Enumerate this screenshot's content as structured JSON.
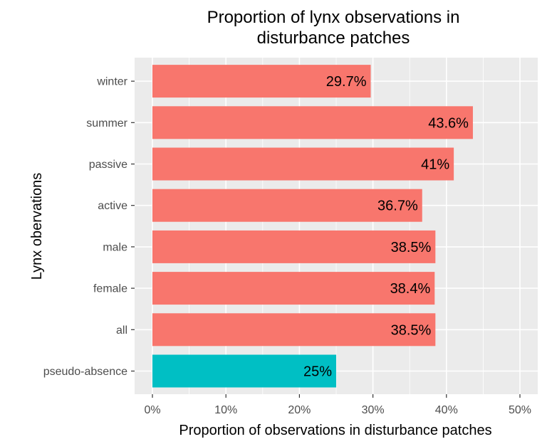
{
  "chart_data": {
    "type": "bar",
    "orientation": "horizontal",
    "title_lines": [
      "Proportion of lynx observations in",
      "disturbance patches"
    ],
    "xlabel": "Proportion of observations in disturbance patches",
    "ylabel": "Lynx obervations",
    "xlim": [
      0,
      50
    ],
    "x_ticks": [
      0,
      10,
      20,
      30,
      40,
      50
    ],
    "x_tick_labels": [
      "0%",
      "10%",
      "20%",
      "30%",
      "40%",
      "50%"
    ],
    "categories": [
      "winter",
      "summer",
      "passive",
      "active",
      "male",
      "female",
      "all",
      "pseudo-absence"
    ],
    "values": [
      29.7,
      43.6,
      41,
      36.7,
      38.5,
      38.4,
      38.5,
      25
    ],
    "data_labels": [
      "29.7%",
      "43.6%",
      "41%",
      "36.7%",
      "38.5%",
      "38.4%",
      "38.5%",
      "25%"
    ],
    "grid": true,
    "legend": "none",
    "colors": {
      "observation_bar": "#f8766d",
      "pseudo_absence_bar": "#00bfc4",
      "panel_background": "#ebebeb",
      "grid": "#ffffff"
    }
  }
}
